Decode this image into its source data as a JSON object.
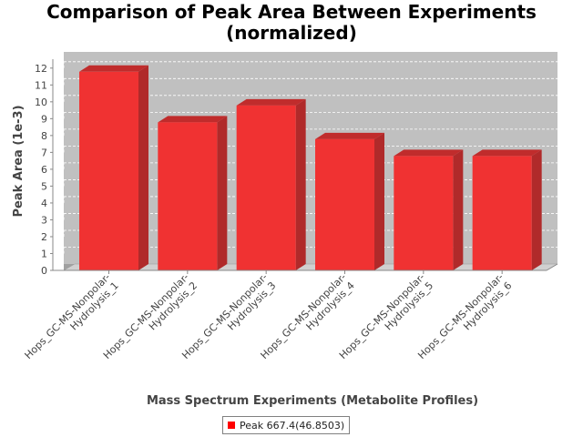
{
  "chart_data": {
    "type": "bar",
    "title_line1": "Comparison of Peak Area Between Experiments",
    "title_line2": "(normalized)",
    "xlabel": "Mass Spectrum Experiments (Metabolite Profiles)",
    "ylabel": "Peak Area (1e-3)",
    "categories": [
      [
        "Hops_GC-MS-Nonpolar-",
        "Hydrolysis_1"
      ],
      [
        "Hops_GC-MS-Nonpolar-",
        "Hydrolysis_2"
      ],
      [
        "Hops_GC-MS-Nonpolar-",
        "Hydrolysis_3"
      ],
      [
        "Hops_GC-MS-Nonpolar-",
        "Hydrolysis_4"
      ],
      [
        "Hops_GC-MS-Nonpolar-",
        "Hydrolysis_5"
      ],
      [
        "Hops_GC-MS-Nonpolar-",
        "Hydrolysis_6"
      ]
    ],
    "series": [
      {
        "name": "Peak 667.4(46.8503)",
        "values": [
          12,
          9,
          10,
          8,
          7,
          7
        ]
      }
    ],
    "ylim": [
      0,
      12.5
    ],
    "yticks": [
      0,
      1,
      2,
      3,
      4,
      5,
      6,
      7,
      8,
      9,
      10,
      11,
      12
    ],
    "grid": true,
    "legend_position": "bottom",
    "colors": {
      "bar_front": "#f03232",
      "bar_side": "#b02a2a",
      "bar_top": "#c02c2c",
      "plot_back": "#c0c0c0",
      "plot_side": "#a0a0a0",
      "floor": "#d0d0d0",
      "grid": "#ffffff"
    }
  }
}
